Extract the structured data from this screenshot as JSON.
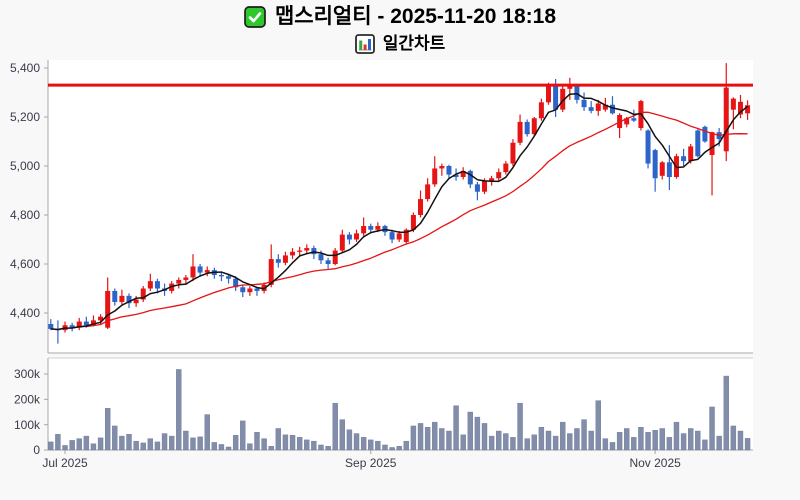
{
  "header": {
    "title": "맵스리얼티 - 2025-11-20 18:18",
    "subtitle": "일간차트",
    "title_icon": "green-checkbox",
    "subtitle_icon": "bar-chart"
  },
  "chart_data": {
    "type": "candlestick",
    "title": "맵스리얼티 - 2025-11-20 18:18",
    "subtitle": "일간차트",
    "grid": false,
    "legend": false,
    "price_axis": {
      "ticks": [
        {
          "label": "5,400",
          "value": 5400
        },
        {
          "label": "5,200",
          "value": 5200
        },
        {
          "label": "5,000",
          "value": 5000
        },
        {
          "label": "4,800",
          "value": 4800
        },
        {
          "label": "4,600",
          "value": 4600
        },
        {
          "label": "4,400",
          "value": 4400
        }
      ],
      "range": [
        4240,
        5440
      ]
    },
    "volume_axis": {
      "ticks": [
        {
          "label": "300k",
          "value_k": 300
        },
        {
          "label": "200k",
          "value_k": 200
        },
        {
          "label": "100k",
          "value_k": 100
        },
        {
          "label": "0",
          "value_k": 0
        }
      ],
      "range_k": [
        0,
        360
      ]
    },
    "x_axis": {
      "ticks": [
        {
          "label": "Jul 2025",
          "index": 2
        },
        {
          "label": "Sep 2025",
          "index": 45
        },
        {
          "label": "Nov 2025",
          "index": 85
        }
      ]
    },
    "reference_line": {
      "value": 5330,
      "color": "#e60f0f"
    },
    "moving_averages": [
      {
        "name": "ma20",
        "window": 20,
        "color": "#e61414"
      },
      {
        "name": "ma5",
        "window": 5,
        "color": "#121212"
      }
    ],
    "colors": {
      "up": "#e61414",
      "down": "#2d64c8",
      "volume": "#828da9"
    },
    "candles_format": [
      "open",
      "high",
      "low",
      "close",
      "volume_k"
    ],
    "candles": [
      [
        4355,
        4375,
        4330,
        4335,
        32
      ],
      [
        4335,
        4370,
        4275,
        4330,
        62
      ],
      [
        4330,
        4365,
        4320,
        4350,
        18
      ],
      [
        4350,
        4360,
        4325,
        4340,
        38
      ],
      [
        4340,
        4380,
        4330,
        4365,
        45
      ],
      [
        4365,
        4385,
        4340,
        4350,
        55
      ],
      [
        4350,
        4390,
        4345,
        4370,
        25
      ],
      [
        4370,
        4395,
        4355,
        4385,
        48
      ],
      [
        4340,
        4545,
        4335,
        4490,
        165
      ],
      [
        4490,
        4500,
        4430,
        4445,
        95
      ],
      [
        4445,
        4495,
        4435,
        4470,
        55
      ],
      [
        4470,
        4480,
        4420,
        4440,
        62
      ],
      [
        4440,
        4470,
        4425,
        4455,
        35
      ],
      [
        4455,
        4510,
        4445,
        4500,
        28
      ],
      [
        4500,
        4560,
        4490,
        4530,
        45
      ],
      [
        4530,
        4540,
        4480,
        4500,
        32
      ],
      [
        4500,
        4520,
        4470,
        4490,
        65
      ],
      [
        4490,
        4530,
        4480,
        4520,
        55
      ],
      [
        4520,
        4545,
        4500,
        4535,
        318
      ],
      [
        4535,
        4555,
        4515,
        4545,
        75
      ],
      [
        4545,
        4640,
        4530,
        4590,
        48
      ],
      [
        4590,
        4600,
        4550,
        4565,
        52
      ],
      [
        4565,
        4590,
        4550,
        4575,
        140
      ],
      [
        4575,
        4585,
        4540,
        4555,
        30
      ],
      [
        4555,
        4570,
        4530,
        4550,
        22
      ],
      [
        4550,
        4560,
        4520,
        4540,
        12
      ],
      [
        4540,
        4550,
        4490,
        4505,
        58
      ],
      [
        4505,
        4515,
        4465,
        4485,
        115
      ],
      [
        4485,
        4510,
        4470,
        4500,
        25
      ],
      [
        4500,
        4505,
        4470,
        4490,
        70
      ],
      [
        4490,
        4525,
        4480,
        4515,
        45
      ],
      [
        4515,
        4680,
        4505,
        4620,
        15
      ],
      [
        4620,
        4640,
        4585,
        4605,
        85
      ],
      [
        4605,
        4650,
        4595,
        4635,
        60
      ],
      [
        4635,
        4665,
        4620,
        4650,
        58
      ],
      [
        4650,
        4670,
        4630,
        4655,
        50
      ],
      [
        4655,
        4680,
        4640,
        4665,
        40
      ],
      [
        4665,
        4675,
        4620,
        4640,
        35
      ],
      [
        4640,
        4655,
        4600,
        4615,
        20
      ],
      [
        4615,
        4625,
        4580,
        4600,
        15
      ],
      [
        4600,
        4665,
        4595,
        4655,
        185
      ],
      [
        4655,
        4740,
        4645,
        4720,
        120
      ],
      [
        4720,
        4730,
        4680,
        4700,
        80
      ],
      [
        4700,
        4740,
        4690,
        4725,
        65
      ],
      [
        4725,
        4790,
        4715,
        4755,
        50
      ],
      [
        4755,
        4765,
        4725,
        4740,
        40
      ],
      [
        4740,
        4770,
        4730,
        4755,
        35
      ],
      [
        4755,
        4760,
        4715,
        4730,
        20
      ],
      [
        4730,
        4740,
        4685,
        4700,
        10
      ],
      [
        4700,
        4735,
        4690,
        4725,
        15
      ],
      [
        4690,
        4745,
        4680,
        4740,
        35
      ],
      [
        4740,
        4810,
        4730,
        4800,
        95
      ],
      [
        4800,
        4900,
        4790,
        4865,
        105
      ],
      [
        4865,
        4950,
        4855,
        4925,
        90
      ],
      [
        4925,
        5040,
        4915,
        4990,
        110
      ],
      [
        4990,
        5010,
        4960,
        5000,
        85
      ],
      [
        5000,
        5005,
        4950,
        4965,
        75
      ],
      [
        4965,
        4990,
        4940,
        4955,
        175
      ],
      [
        4955,
        4995,
        4945,
        4980,
        60
      ],
      [
        4980,
        4985,
        4910,
        4925,
        150
      ],
      [
        4925,
        4935,
        4860,
        4895,
        130
      ],
      [
        4895,
        4950,
        4885,
        4940,
        105
      ],
      [
        4940,
        4960,
        4920,
        4950,
        55
      ],
      [
        4950,
        4990,
        4935,
        4975,
        75
      ],
      [
        4975,
        5020,
        4965,
        5010,
        65
      ],
      [
        5010,
        5110,
        5000,
        5095,
        50
      ],
      [
        5095,
        5210,
        5085,
        5180,
        185
      ],
      [
        5180,
        5190,
        5120,
        5130,
        45
      ],
      [
        5130,
        5200,
        5120,
        5195,
        60
      ],
      [
        5195,
        5275,
        5185,
        5260,
        90
      ],
      [
        5260,
        5340,
        5250,
        5330,
        75
      ],
      [
        5330,
        5355,
        5200,
        5230,
        55
      ],
      [
        5230,
        5325,
        5220,
        5315,
        110
      ],
      [
        5315,
        5360,
        5270,
        5330,
        65
      ],
      [
        5330,
        5335,
        5255,
        5270,
        85
      ],
      [
        5270,
        5300,
        5225,
        5240,
        120
      ],
      [
        5240,
        5265,
        5215,
        5225,
        75
      ],
      [
        5225,
        5270,
        5205,
        5255,
        195
      ],
      [
        5230,
        5278,
        5222,
        5250,
        45
      ],
      [
        5250,
        5285,
        5210,
        5215,
        30
      ],
      [
        5155,
        5215,
        5114,
        5208,
        70
      ],
      [
        5170,
        5200,
        5158,
        5195,
        85
      ],
      [
        5195,
        5230,
        5180,
        5185,
        50
      ],
      [
        5155,
        5270,
        5145,
        5265,
        90
      ],
      [
        5145,
        5150,
        4990,
        5010,
        70
      ],
      [
        5065,
        5070,
        4895,
        4950,
        78
      ],
      [
        4960,
        5020,
        4945,
        5015,
        85
      ],
      [
        5015,
        5085,
        4902,
        4955,
        50
      ],
      [
        4955,
        5050,
        4948,
        5040,
        110
      ],
      [
        5040,
        5070,
        5000,
        5020,
        65
      ],
      [
        5020,
        5090,
        5010,
        5080,
        85
      ],
      [
        5145,
        5150,
        5035,
        5040,
        75
      ],
      [
        5160,
        5165,
        5095,
        5100,
        40
      ],
      [
        5045,
        5140,
        4880,
        5138,
        170
      ],
      [
        5138,
        5155,
        5080,
        5110,
        55
      ],
      [
        5060,
        5420,
        5020,
        5320,
        292
      ],
      [
        5230,
        5280,
        5150,
        5275,
        95
      ],
      [
        5210,
        5290,
        5195,
        5262,
        75
      ],
      [
        5215,
        5268,
        5188,
        5248,
        46
      ]
    ]
  }
}
